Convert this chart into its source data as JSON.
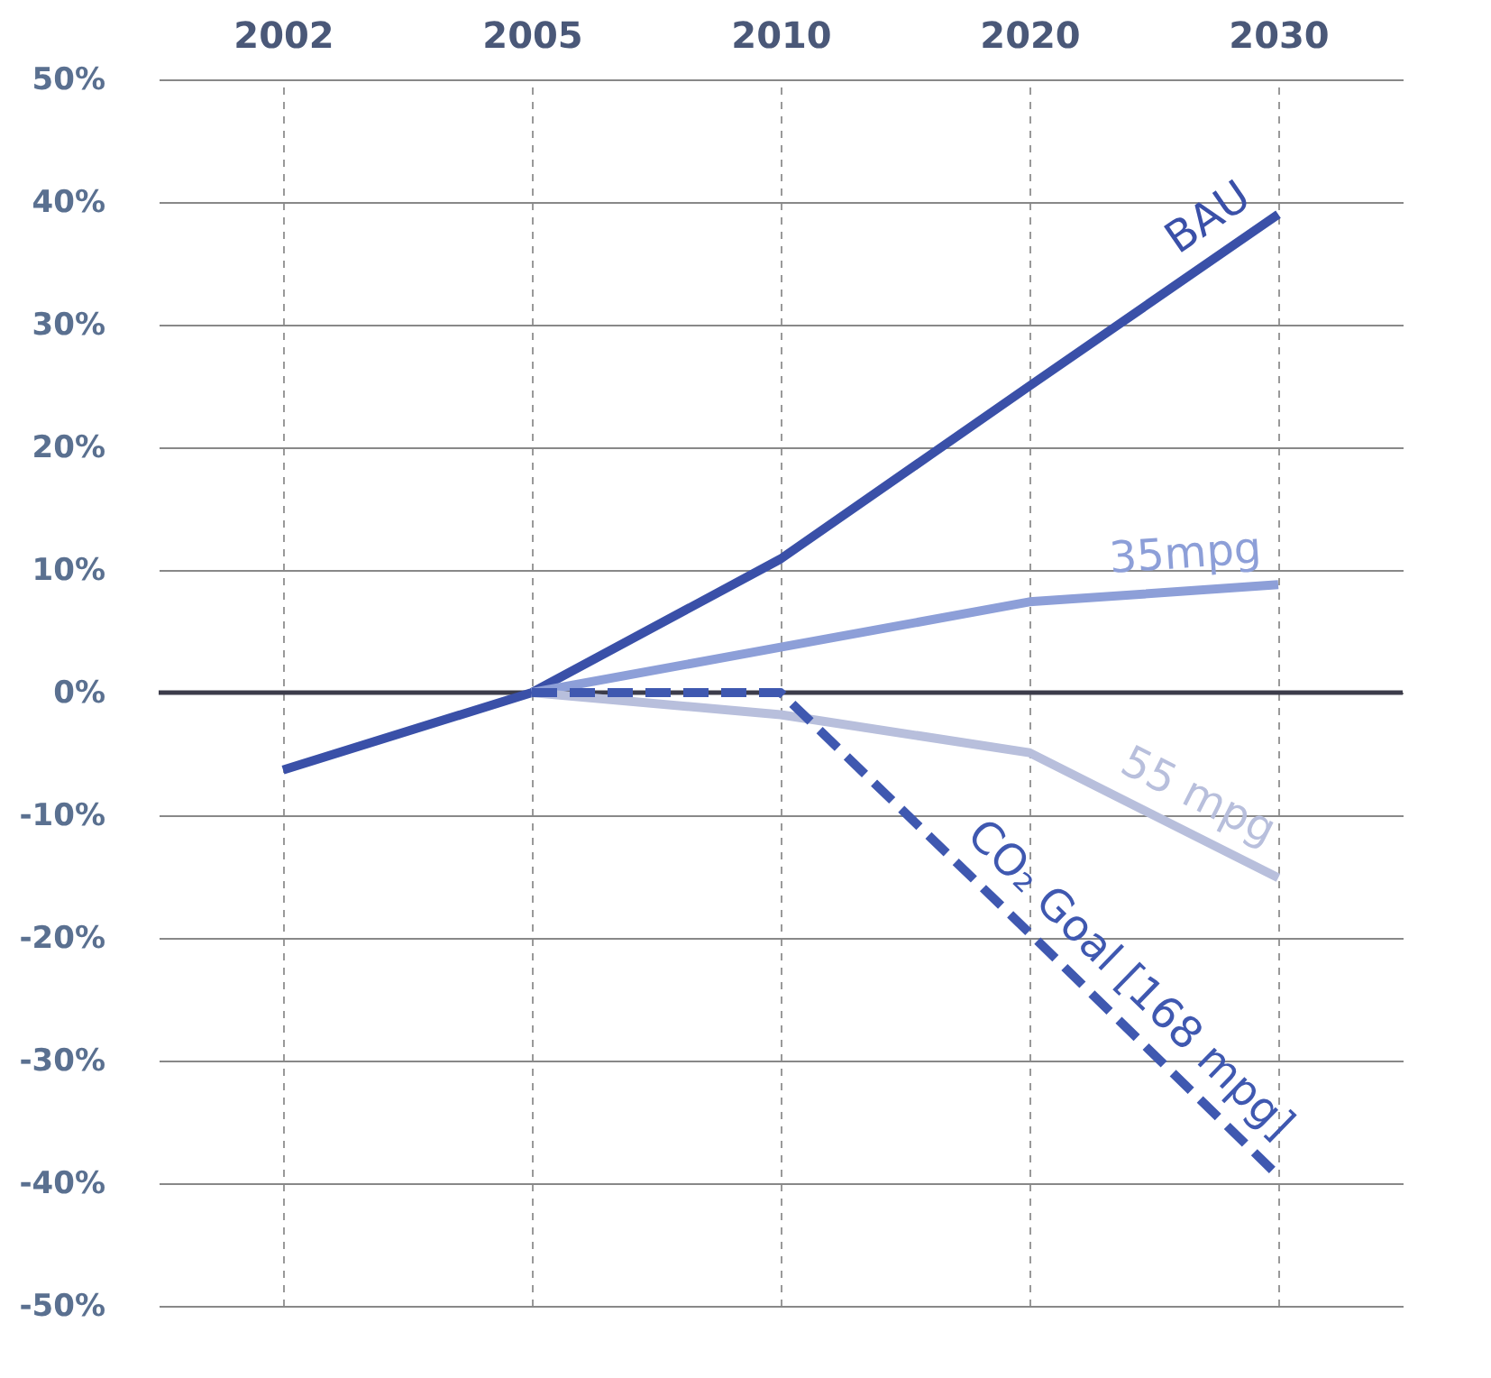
{
  "chart_data": {
    "type": "line",
    "categories": [
      "2002",
      "2005",
      "2010",
      "2020",
      "2030"
    ],
    "series": [
      {
        "name": "BAU",
        "color": "#3a50a8",
        "values": [
          -6.3,
          0,
          10.9,
          25,
          39
        ]
      },
      {
        "name": "35mpg",
        "color": "#8d9fd8",
        "values": [
          null,
          0,
          3.7,
          7.4,
          8.8
        ]
      },
      {
        "name": "55 mpg",
        "color": "#b8bfdc",
        "values": [
          null,
          0,
          -1.8,
          -4.9,
          -15.1
        ]
      },
      {
        "name": "CO₂ Goal [168 mpg]",
        "color": "#3f58b0",
        "line_style": "dashed",
        "values": [
          null,
          0,
          0,
          -19.6,
          -39.4
        ]
      }
    ],
    "ylim": [
      -50,
      50
    ],
    "yticks": [
      {
        "value": -50,
        "label": "-50%"
      },
      {
        "value": -40,
        "label": "-40%"
      },
      {
        "value": -30,
        "label": "-30%"
      },
      {
        "value": -20,
        "label": "-20%"
      },
      {
        "value": -10,
        "label": "-10%"
      },
      {
        "value": 0,
        "label": "0%"
      },
      {
        "value": 10,
        "label": "10%"
      },
      {
        "value": 20,
        "label": "20%"
      },
      {
        "value": 30,
        "label": "30%"
      },
      {
        "value": 40,
        "label": "40%"
      },
      {
        "value": 50,
        "label": "50%"
      }
    ],
    "ref_lines": [
      {
        "axis": "y",
        "value": 0,
        "color": "#3c3c4a"
      }
    ],
    "grid": true
  }
}
